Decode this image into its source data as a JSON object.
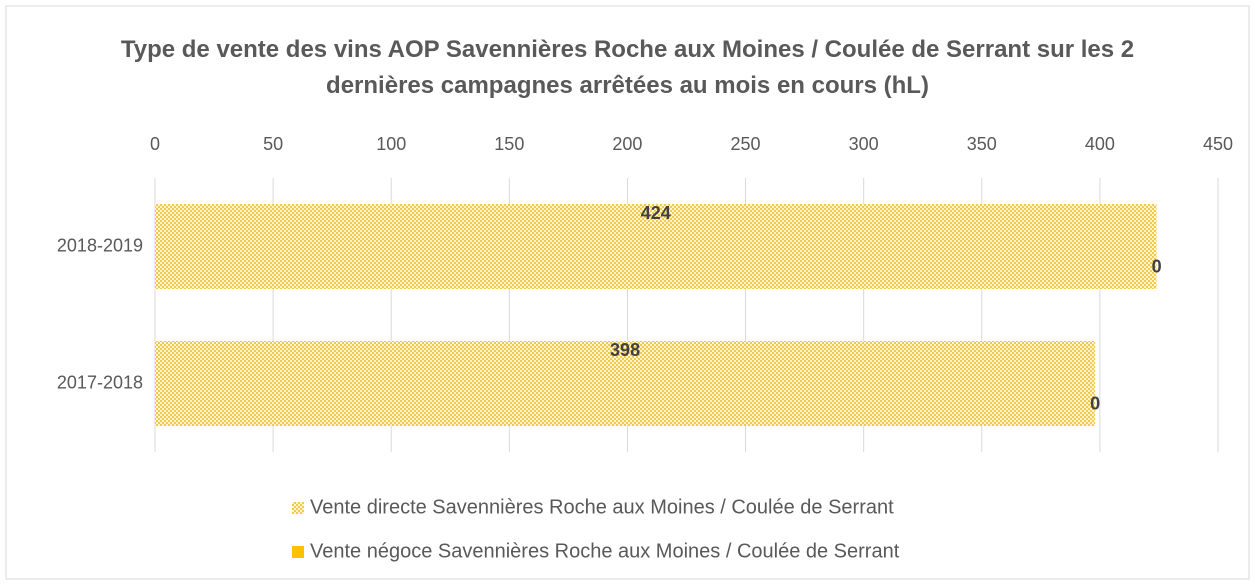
{
  "chart_data": {
    "type": "bar",
    "orientation": "horizontal",
    "stacked": true,
    "title": "Type de vente des vins AOP Savennières Roche aux Moines / Coulée de Serrant sur les 2 dernières campagnes arrêtées au mois en cours (hL)",
    "categories": [
      "2017-2018",
      "2018-2019"
    ],
    "series": [
      {
        "name": "Vente directe Savennières Roche aux Moines / Coulée de Serrant",
        "color": "#f5d46a",
        "pattern": "dots",
        "values": [
          398,
          424
        ]
      },
      {
        "name": "Vente négoce Savennières Roche aux Moines / Coulée de Serrant",
        "color": "#ffc000",
        "values": [
          0,
          0
        ]
      }
    ],
    "xlim": [
      0,
      450
    ],
    "xticks": [
      0,
      50,
      100,
      150,
      200,
      250,
      300,
      350,
      400,
      450
    ],
    "grid": true,
    "legend": "bottom"
  }
}
